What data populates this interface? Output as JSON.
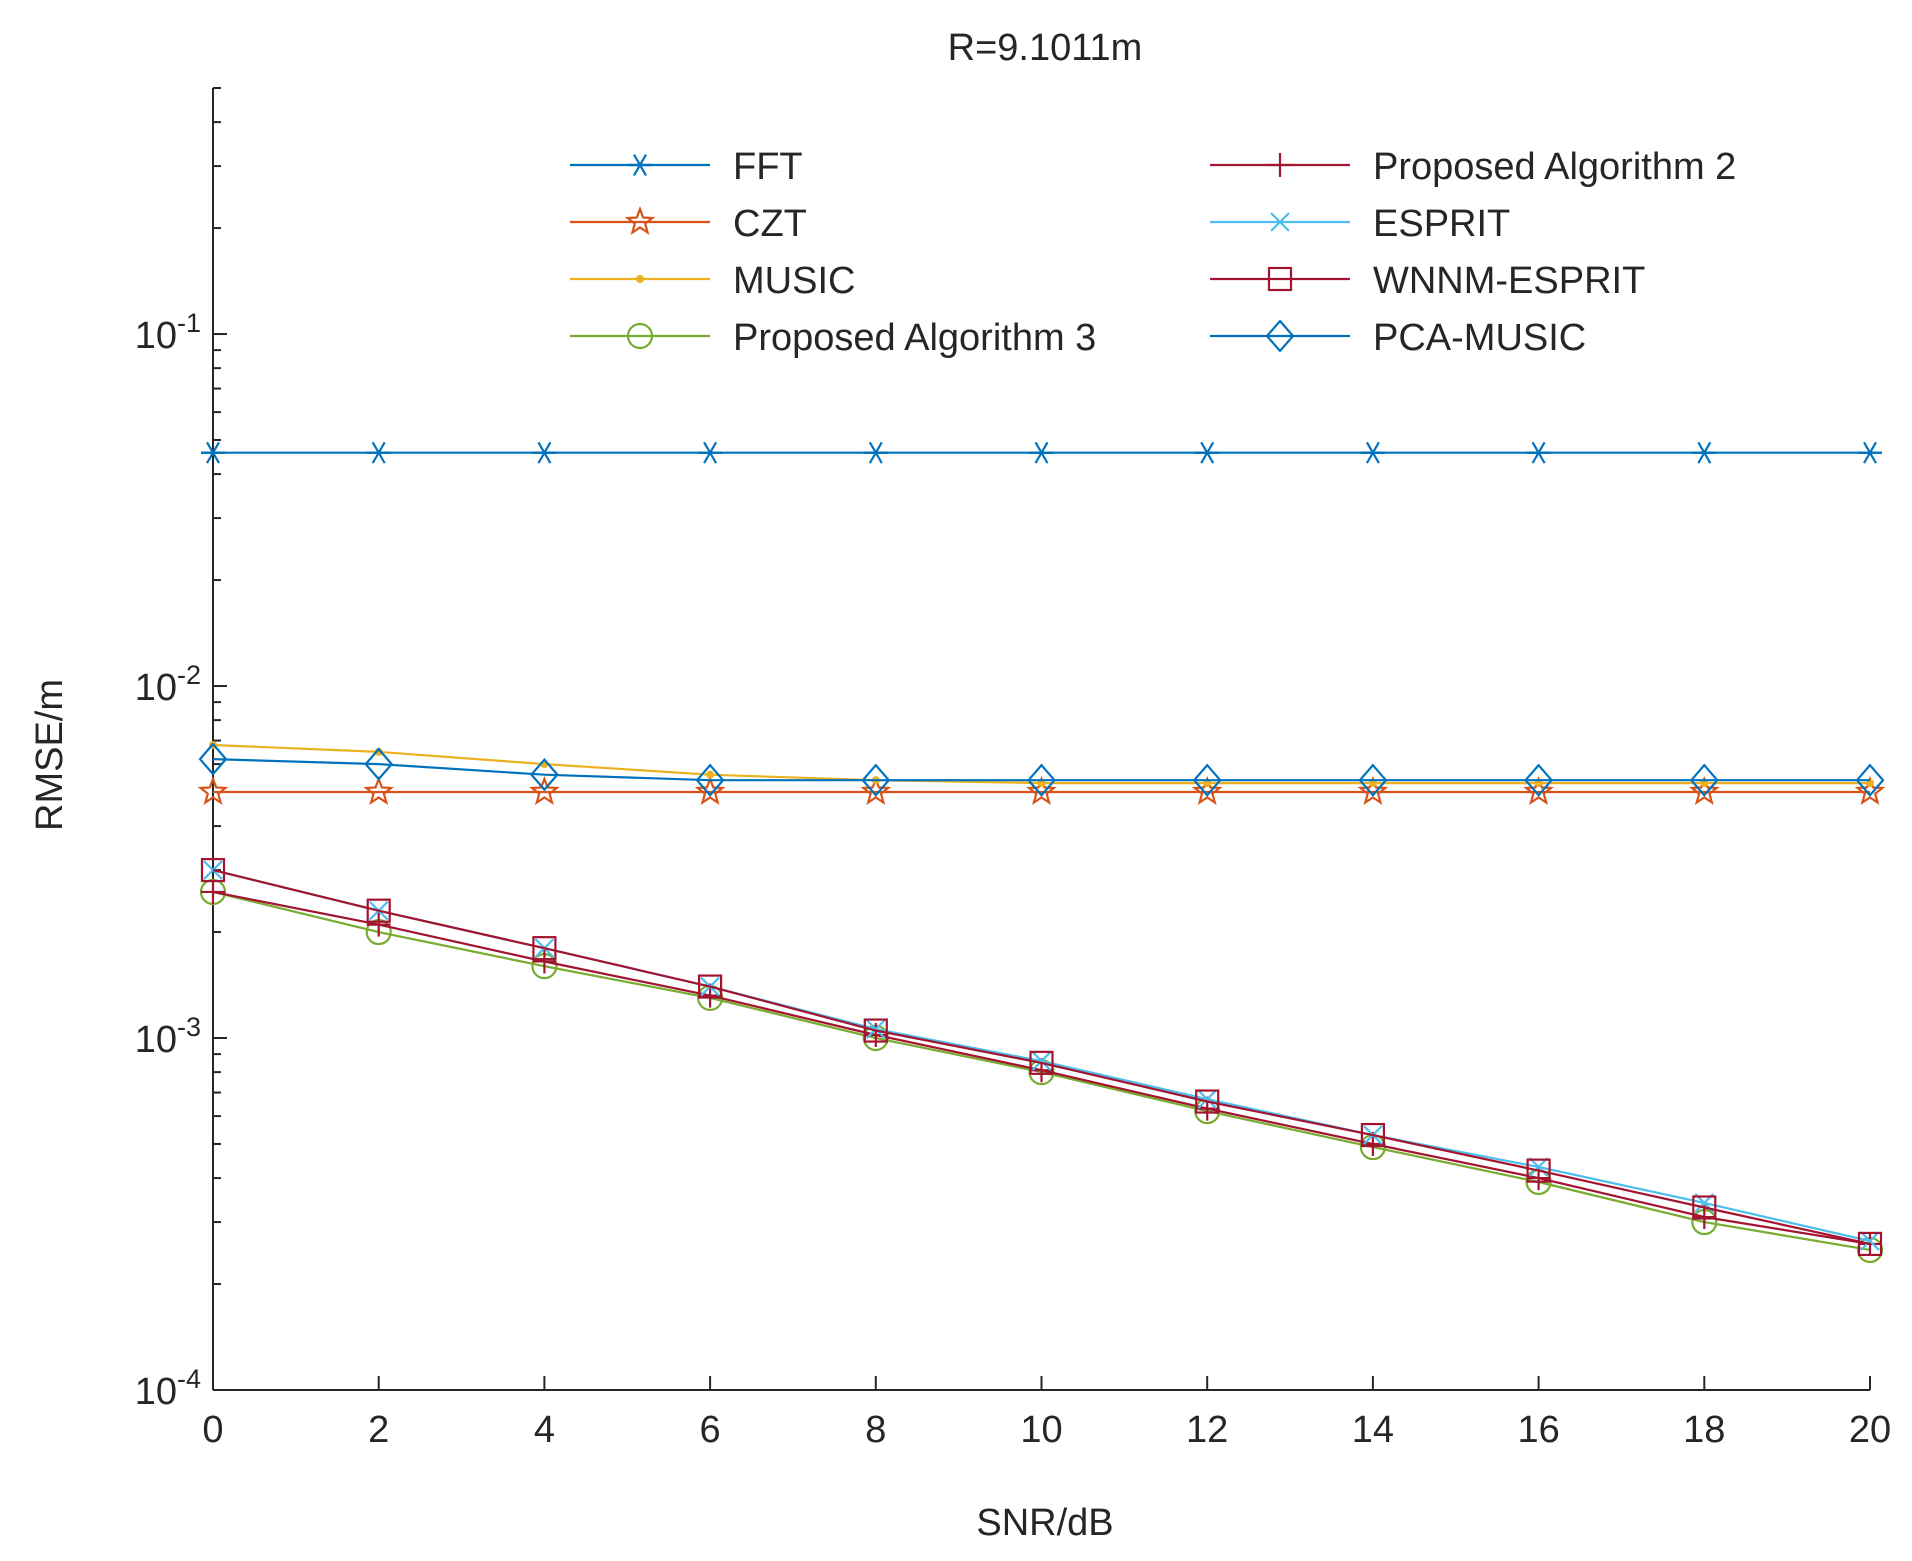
{
  "chart_data": {
    "type": "line",
    "title": "R=9.1011m",
    "xlabel": "SNR/dB",
    "ylabel": "RMSE/m",
    "yscale": "log",
    "xlim": [
      0,
      20
    ],
    "ylim": [
      0.0001,
      0.5
    ],
    "x": [
      0,
      2,
      4,
      6,
      8,
      10,
      12,
      14,
      16,
      18,
      20
    ],
    "xticks": [
      "0",
      "2",
      "4",
      "6",
      "8",
      "10",
      "12",
      "14",
      "16",
      "18",
      "20"
    ],
    "yticks": [
      {
        "value": 0.1,
        "base": "10",
        "exp": "-1"
      },
      {
        "value": 0.01,
        "base": "10",
        "exp": "-2"
      },
      {
        "value": 0.001,
        "base": "10",
        "exp": "-3"
      },
      {
        "value": 0.0001,
        "base": "10",
        "exp": "-4"
      }
    ],
    "legend_position": "top",
    "series": [
      {
        "name": "FFT",
        "color": "#0072BD",
        "marker": "asterisk",
        "values": [
          0.046,
          0.046,
          0.046,
          0.046,
          0.046,
          0.046,
          0.046,
          0.046,
          0.046,
          0.046,
          0.046
        ]
      },
      {
        "name": "CZT",
        "color": "#D95319",
        "marker": "pentagram",
        "values": [
          0.005,
          0.005,
          0.005,
          0.005,
          0.005,
          0.005,
          0.005,
          0.005,
          0.005,
          0.005,
          0.005
        ]
      },
      {
        "name": "MUSIC",
        "color": "#EDB120",
        "marker": "point",
        "values": [
          0.0068,
          0.0065,
          0.006,
          0.0056,
          0.0054,
          0.0053,
          0.0053,
          0.0053,
          0.0053,
          0.0053,
          0.0053
        ]
      },
      {
        "name": "Proposed Algorithm 3",
        "color": "#77AC30",
        "marker": "circle",
        "values": [
          0.0026,
          0.002,
          0.0016,
          0.0013,
          0.001,
          0.0008,
          0.00062,
          0.00049,
          0.00039,
          0.0003,
          0.00025
        ]
      },
      {
        "name": "Proposed Algorithm 2",
        "color": "#A2142F",
        "marker": "plus",
        "values": [
          0.0026,
          0.0021,
          0.00165,
          0.00132,
          0.00102,
          0.00081,
          0.00063,
          0.0005,
          0.0004,
          0.00031,
          0.00026
        ]
      },
      {
        "name": "ESPRIT",
        "color": "#4DBEEE",
        "marker": "x",
        "values": [
          0.003,
          0.0023,
          0.0018,
          0.0014,
          0.00106,
          0.00086,
          0.00067,
          0.00053,
          0.00043,
          0.00034,
          0.000265
        ]
      },
      {
        "name": "WNNM-ESPRIT",
        "color": "#A2142F",
        "marker": "square",
        "values": [
          0.003,
          0.0023,
          0.0018,
          0.0014,
          0.00105,
          0.00085,
          0.00066,
          0.00053,
          0.00042,
          0.00033,
          0.00026
        ]
      },
      {
        "name": "PCA-MUSIC",
        "color": "#0072BD",
        "marker": "diamond",
        "values": [
          0.0062,
          0.006,
          0.0056,
          0.0054,
          0.0054,
          0.0054,
          0.0054,
          0.0054,
          0.0054,
          0.0054,
          0.0054
        ]
      }
    ]
  }
}
